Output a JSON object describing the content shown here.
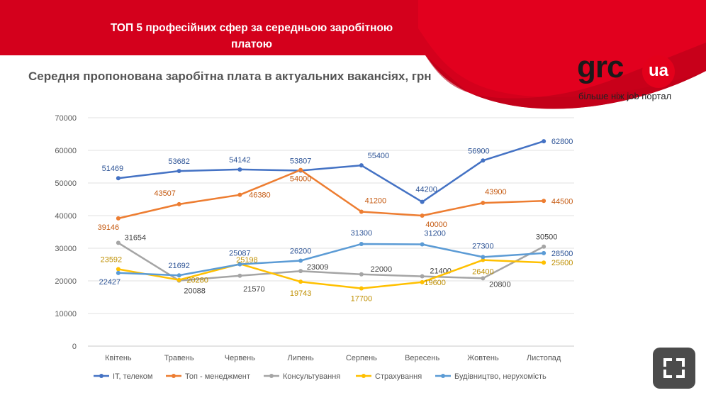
{
  "header": {
    "title_line1": "ТОП 5 професійних сфер за середньою заробітною",
    "title_line2": "платою"
  },
  "logo": {
    "brand": "grc",
    "badge": "ua",
    "tagline": "більше ніж job портал"
  },
  "colors": {
    "banner": "#d4001c",
    "it": "#4472c4",
    "management": "#ed7d31",
    "consulting": "#a5a5a5",
    "insurance": "#ffc000",
    "construction": "#5b9bd5"
  },
  "fullscreen_button": {
    "icon": "fullscreen-icon"
  },
  "chart_data": {
    "type": "line",
    "title": "Середня пропонована заробітна плата в актуальних вакансіях, грн",
    "categories": [
      "Квітень",
      "Травень",
      "Червень",
      "Липень",
      "Серпень",
      "Вересень",
      "Жовтень",
      "Листопад"
    ],
    "ylim": [
      0,
      70000
    ],
    "yticks": [
      0,
      10000,
      20000,
      30000,
      40000,
      50000,
      60000,
      70000
    ],
    "grid": true,
    "legend_position": "bottom",
    "series": [
      {
        "name": "IT, телеком",
        "color": "#4472c4",
        "values": [
          51469,
          53682,
          54142,
          53807,
          55400,
          44200,
          56900,
          62800
        ]
      },
      {
        "name": "Топ - менеджмент",
        "color": "#ed7d31",
        "values": [
          39146,
          43507,
          46380,
          54000,
          41200,
          40000,
          43900,
          44500
        ]
      },
      {
        "name": "Консультування",
        "color": "#a5a5a5",
        "values": [
          31654,
          20088,
          21570,
          23009,
          22000,
          21400,
          20800,
          30500
        ]
      },
      {
        "name": "Страхування",
        "color": "#ffc000",
        "values": [
          23592,
          20280,
          25198,
          19743,
          17700,
          19600,
          26400,
          25600
        ]
      },
      {
        "name": "Будівництво, нерухомість",
        "color": "#5b9bd5",
        "values": [
          22427,
          21692,
          25087,
          26200,
          31300,
          31200,
          27300,
          28500
        ]
      }
    ]
  }
}
